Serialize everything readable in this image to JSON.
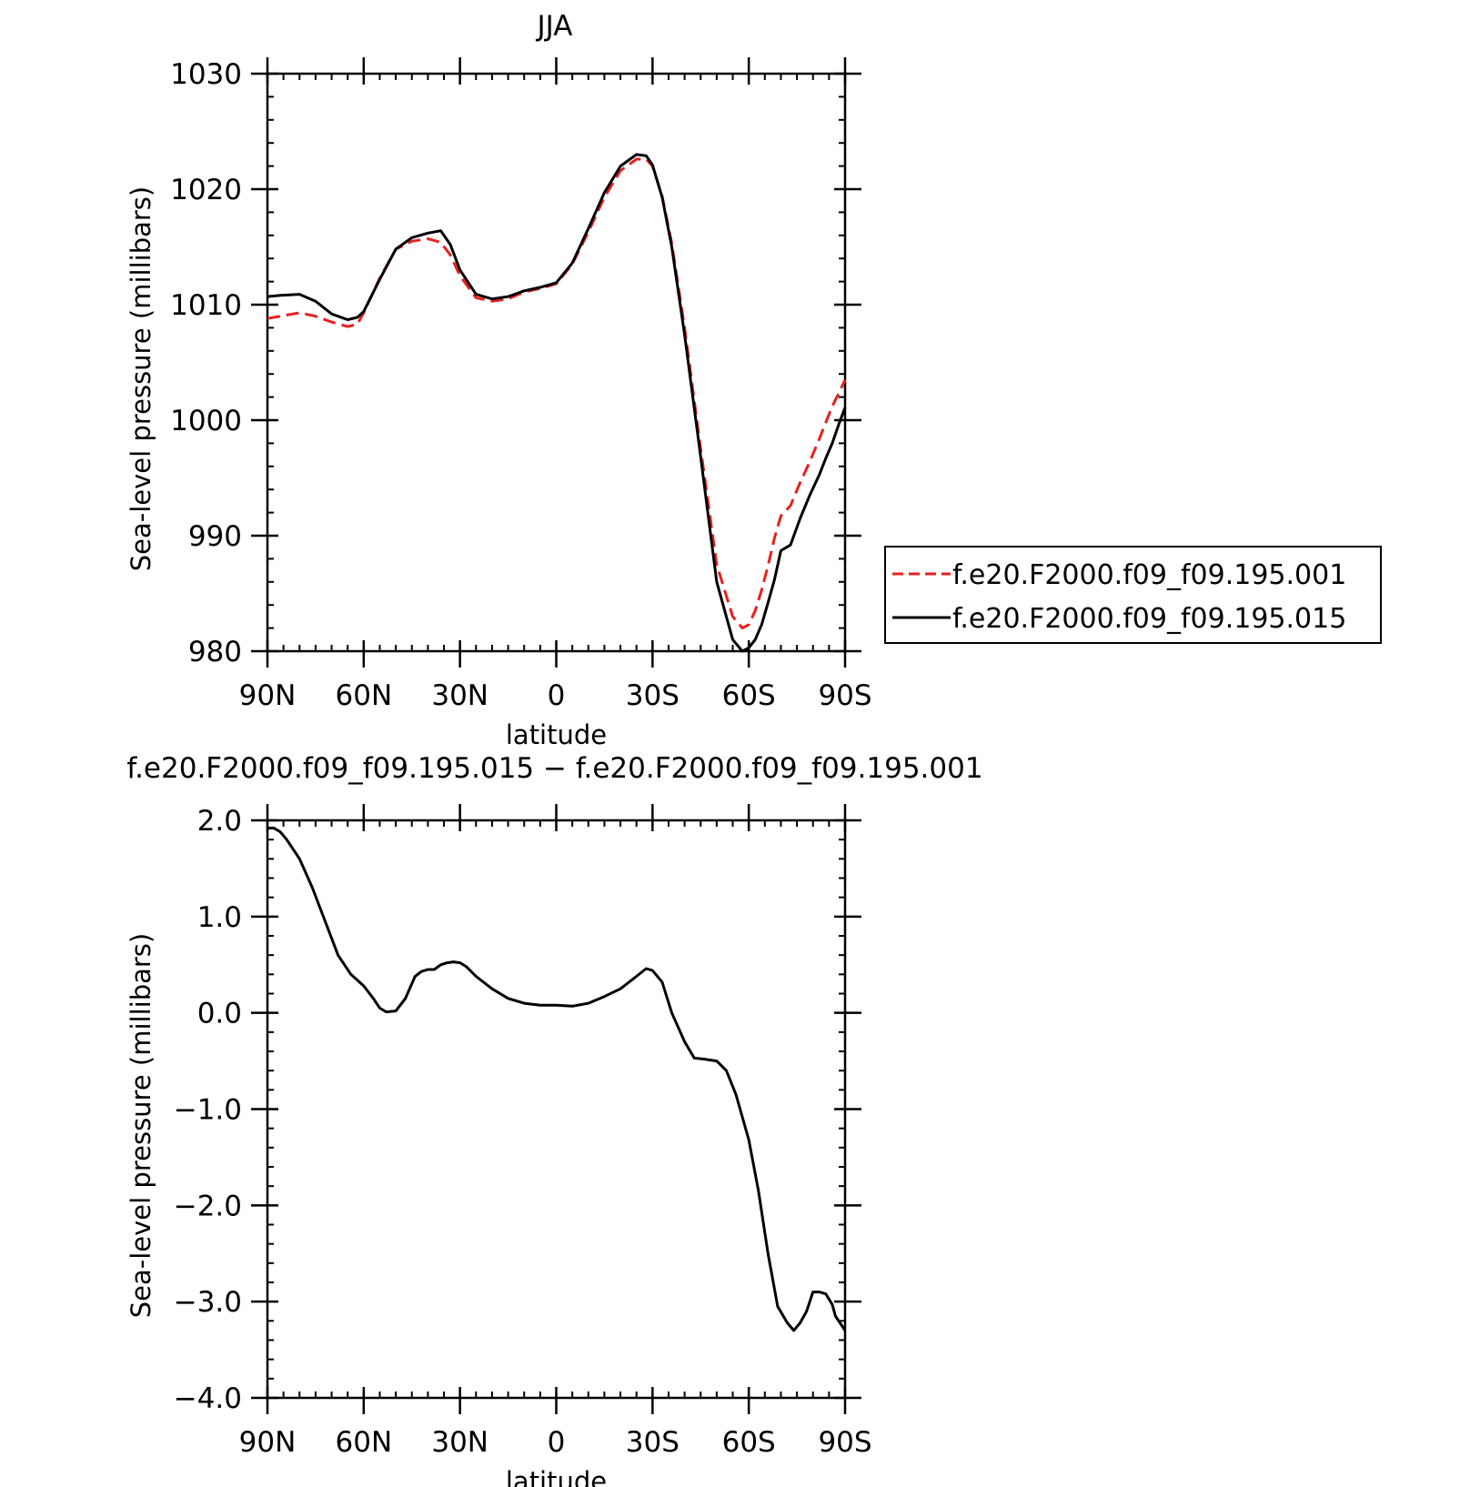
{
  "chart_data": [
    {
      "type": "line",
      "title": "JJA",
      "xlabel": "latitude",
      "ylabel": "Sea-level pressure (millibars)",
      "xlim": [
        90,
        -90
      ],
      "ylim": [
        980,
        1030
      ],
      "x_tick_values": [
        90,
        60,
        30,
        0,
        -30,
        -60,
        -90
      ],
      "x_tick_labels": [
        "90N",
        "60N",
        "30N",
        "0",
        "30S",
        "60S",
        "90S"
      ],
      "y_tick_values": [
        980,
        990,
        1000,
        1010,
        1020,
        1030
      ],
      "y_tick_labels": [
        "980",
        "990",
        "1000",
        "1010",
        "1020",
        "1030"
      ],
      "legend_position": "right",
      "series": [
        {
          "name": "f.e20.F2000.f09_f09.195.001",
          "color": "#e8201e",
          "dash": "dashed",
          "x": [
            90,
            86,
            80,
            75,
            70,
            65,
            62,
            60,
            55,
            50,
            45,
            40,
            36,
            33,
            30,
            25,
            20,
            15,
            10,
            5,
            0,
            -5,
            -10,
            -15,
            -20,
            -25,
            -28,
            -30,
            -33,
            -36,
            -40,
            -45,
            -50,
            -55,
            -58,
            -60,
            -62,
            -64,
            -66,
            -68,
            -70,
            -73,
            -76,
            -79,
            -82,
            -84,
            -86,
            -88,
            -90
          ],
          "y": [
            1008.8,
            1009.0,
            1009.3,
            1009.0,
            1008.5,
            1008.1,
            1008.3,
            1009.3,
            1012.3,
            1014.8,
            1015.5,
            1015.7,
            1015.4,
            1014.3,
            1012.5,
            1010.6,
            1010.3,
            1010.5,
            1011.1,
            1011.4,
            1011.8,
            1013.5,
            1016.3,
            1019.3,
            1021.6,
            1022.6,
            1022.6,
            1022.0,
            1019.4,
            1015.3,
            1008.0,
            997.5,
            987.5,
            983.0,
            982.0,
            982.3,
            983.5,
            985.3,
            987.4,
            989.8,
            991.7,
            992.6,
            994.6,
            996.4,
            998.4,
            999.8,
            1001.2,
            1002.3,
            1003.5
          ]
        },
        {
          "name": "f.e20.F2000.f09_f09.195.015",
          "color": "#000000",
          "dash": "solid",
          "x": [
            90,
            86,
            80,
            75,
            70,
            65,
            62,
            60,
            55,
            50,
            45,
            40,
            36,
            33,
            30,
            25,
            20,
            15,
            10,
            5,
            0,
            -5,
            -10,
            -15,
            -20,
            -25,
            -28,
            -30,
            -33,
            -36,
            -40,
            -45,
            -50,
            -55,
            -58,
            -60,
            -62,
            -64,
            -66,
            -68,
            -70,
            -73,
            -76,
            -79,
            -82,
            -84,
            -86,
            -88,
            -90
          ],
          "y": [
            1010.7,
            1010.8,
            1010.9,
            1010.3,
            1009.2,
            1008.7,
            1008.9,
            1009.4,
            1012.2,
            1014.8,
            1015.8,
            1016.2,
            1016.4,
            1015.2,
            1013.0,
            1010.9,
            1010.5,
            1010.7,
            1011.2,
            1011.5,
            1011.9,
            1013.6,
            1016.6,
            1019.7,
            1022.0,
            1023.0,
            1022.9,
            1022.1,
            1019.3,
            1015.0,
            1007.4,
            996.8,
            986.0,
            981.0,
            980.0,
            980.3,
            981.0,
            982.3,
            984.2,
            986.2,
            988.7,
            989.2,
            991.5,
            993.5,
            995.3,
            996.7,
            998.0,
            999.6,
            1001.1
          ]
        }
      ]
    },
    {
      "type": "line",
      "title": "f.e20.F2000.f09_f09.195.015 − f.e20.F2000.f09_f09.195.001",
      "xlabel": "latitude",
      "ylabel": "Sea-level pressure (millibars)",
      "xlim": [
        90,
        -90
      ],
      "ylim": [
        -4.0,
        2.0
      ],
      "x_tick_values": [
        90,
        60,
        30,
        0,
        -30,
        -60,
        -90
      ],
      "x_tick_labels": [
        "90N",
        "60N",
        "30N",
        "0",
        "30S",
        "60S",
        "90S"
      ],
      "y_tick_values": [
        -4,
        -3,
        -2,
        -1,
        0,
        1,
        2
      ],
      "y_tick_labels": [
        "−4.0",
        "−3.0",
        "−2.0",
        "−1.0",
        "0.0",
        "1.0",
        "2.0"
      ],
      "series": [
        {
          "color": "#000000",
          "dash": "solid",
          "x": [
            90,
            88,
            86,
            84,
            80,
            76,
            72,
            68,
            64,
            60,
            57,
            55,
            53,
            50,
            47,
            44,
            42,
            40,
            38,
            36,
            34,
            32,
            30,
            28,
            25,
            20,
            15,
            10,
            5,
            0,
            -5,
            -10,
            -15,
            -20,
            -25,
            -28,
            -30,
            -33,
            -36,
            -40,
            -43,
            -46,
            -50,
            -53,
            -56,
            -60,
            -63,
            -66,
            -69,
            -72,
            -74,
            -76,
            -78,
            -80,
            -82,
            -84,
            -86,
            -87,
            -88,
            -89,
            -90
          ],
          "y": [
            1.92,
            1.92,
            1.88,
            1.8,
            1.6,
            1.3,
            0.95,
            0.6,
            0.4,
            0.28,
            0.15,
            0.05,
            0.01,
            0.02,
            0.15,
            0.38,
            0.43,
            0.45,
            0.45,
            0.5,
            0.52,
            0.53,
            0.52,
            0.48,
            0.38,
            0.25,
            0.15,
            0.1,
            0.08,
            0.08,
            0.07,
            0.1,
            0.17,
            0.25,
            0.38,
            0.46,
            0.44,
            0.32,
            0.0,
            -0.3,
            -0.47,
            -0.48,
            -0.5,
            -0.6,
            -0.85,
            -1.32,
            -1.85,
            -2.5,
            -3.05,
            -3.22,
            -3.3,
            -3.22,
            -3.1,
            -2.9,
            -2.9,
            -2.92,
            -3.03,
            -3.15,
            -3.2,
            -3.25,
            -3.3
          ]
        }
      ]
    }
  ]
}
